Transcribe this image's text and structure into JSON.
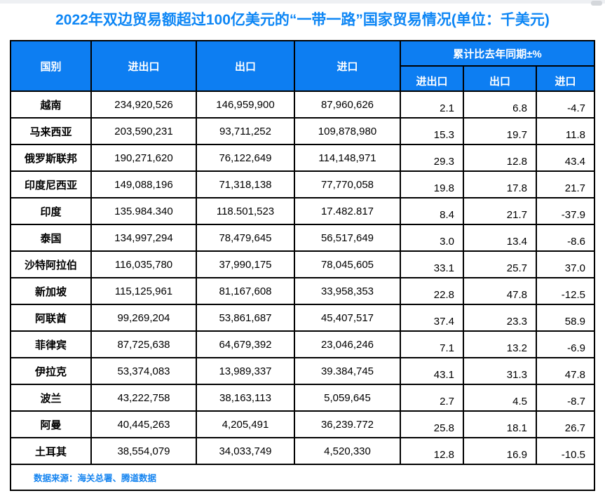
{
  "title": "2022年双边贸易额超过100亿美元的“一带一路”国家贸易情况(单位：千美元)",
  "colors": {
    "header_bg": "#0d7ef2",
    "title_text": "#0d86f5",
    "source_text": "#1584f0",
    "border": "#000000"
  },
  "table": {
    "headers": {
      "country": "国别",
      "total": "进出口",
      "export": "出口",
      "import": "进口",
      "yoy_group": "累计比去年同期±%",
      "yoy_total": "进出口",
      "yoy_export": "出口",
      "yoy_import": "进口"
    },
    "rows": [
      {
        "country": "越南",
        "total": "234,920,526",
        "export": "146,959,900",
        "import": "87,960,626",
        "yoy_total": "2.1",
        "yoy_export": "6.8",
        "yoy_import": "-4.7"
      },
      {
        "country": "马来西亚",
        "total": "203,590,231",
        "export": "93,711,252",
        "import": "109,878,980",
        "yoy_total": "15.3",
        "yoy_export": "19.7",
        "yoy_import": "11.8"
      },
      {
        "country": "俄罗斯联邦",
        "total": "190,271,620",
        "export": "76,122,649",
        "import": "114,148,971",
        "yoy_total": "29.3",
        "yoy_export": "12.8",
        "yoy_import": "43.4"
      },
      {
        "country": "印度尼西亚",
        "total": "149,088,196",
        "export": "71,318,138",
        "import": "77,770,058",
        "yoy_total": "19.8",
        "yoy_export": "17.8",
        "yoy_import": "21.7"
      },
      {
        "country": "印度",
        "total": "135.984.340",
        "export": "118.501,523",
        "import": "17.482.817",
        "yoy_total": "8.4",
        "yoy_export": "21.7",
        "yoy_import": "-37.9"
      },
      {
        "country": "泰国",
        "total": "134,997,294",
        "export": "78,479,645",
        "import": "56,517,649",
        "yoy_total": "3.0",
        "yoy_export": "13.4",
        "yoy_import": "-8.6"
      },
      {
        "country": "沙特阿拉伯",
        "total": "116,035,780",
        "export": "37,990,175",
        "import": "78,045,605",
        "yoy_total": "33.1",
        "yoy_export": "25.7",
        "yoy_import": "37.0"
      },
      {
        "country": "新加坡",
        "total": "115,125,961",
        "export": "81,167,608",
        "import": "33,958,353",
        "yoy_total": "22.8",
        "yoy_export": "47.8",
        "yoy_import": "-12.5"
      },
      {
        "country": "阿联酋",
        "total": "99,269,204",
        "export": "53,861,687",
        "import": "45,407,517",
        "yoy_total": "37.4",
        "yoy_export": "23.3",
        "yoy_import": "58.9"
      },
      {
        "country": "菲律宾",
        "total": "87,725,638",
        "export": "64,679,392",
        "import": "23,046,246",
        "yoy_total": "7.1",
        "yoy_export": "13.2",
        "yoy_import": "-6.9"
      },
      {
        "country": "伊拉克",
        "total": "53,374,083",
        "export": "13,989,337",
        "import": "39.384,745",
        "yoy_total": "43.1",
        "yoy_export": "31.3",
        "yoy_import": "47.8"
      },
      {
        "country": "波兰",
        "total": "43,222,758",
        "export": "38,163,113",
        "import": "5,059,645",
        "yoy_total": "2.7",
        "yoy_export": "4.5",
        "yoy_import": "-8.7"
      },
      {
        "country": "阿曼",
        "total": "40,445,263",
        "export": "4,205,491",
        "import": "36,239.772",
        "yoy_total": "25.8",
        "yoy_export": "18.1",
        "yoy_import": "26.7"
      },
      {
        "country": "土耳其",
        "total": "38,554,079",
        "export": "34,033,749",
        "import": "4,520,330",
        "yoy_total": "12.8",
        "yoy_export": "16.9",
        "yoy_import": "-10.5"
      }
    ]
  },
  "source": "数据来源：海关总署、腾道数据"
}
